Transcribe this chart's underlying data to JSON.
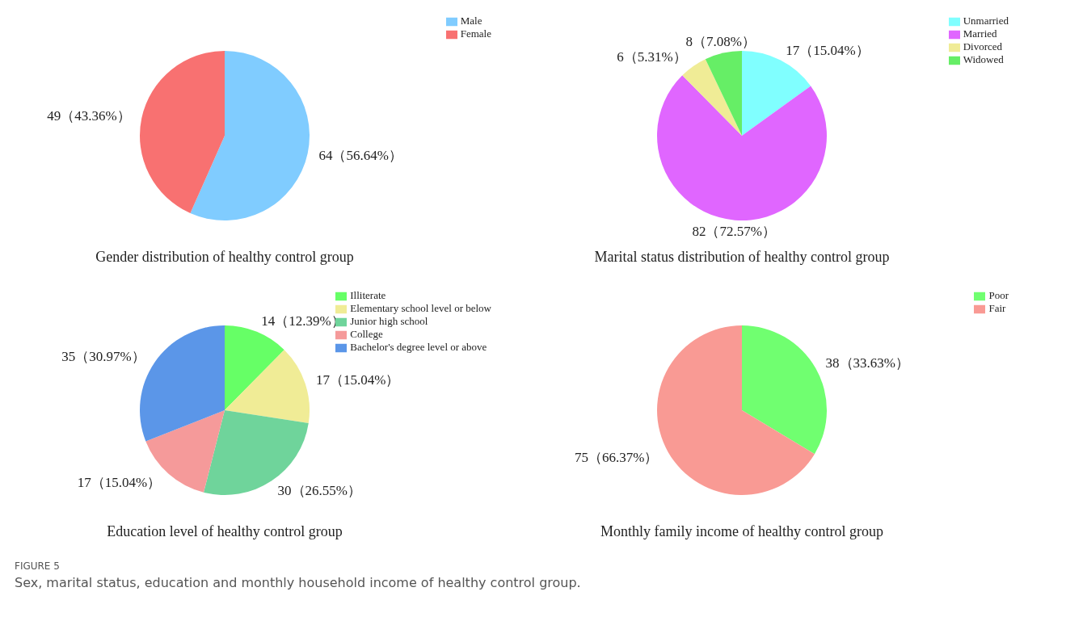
{
  "chart_data": [
    {
      "type": "pie",
      "title": "Gender distribution of healthy control group",
      "categories": [
        "Male",
        "Female"
      ],
      "values": [
        64,
        49
      ],
      "colors": [
        "#80ccff",
        "#f87171"
      ],
      "value_labels": [
        "64（56.64%）",
        "49（43.36%）"
      ],
      "legend": "top right"
    },
    {
      "type": "pie",
      "title": "Marital  status distribution of healthy control group",
      "categories": [
        "Unmarried",
        "Married",
        "Divorced",
        "Widowed"
      ],
      "values": [
        17,
        82,
        6,
        8
      ],
      "colors": [
        "#80ffff",
        "#e066ff",
        "#f0ec96",
        "#66ee66"
      ],
      "value_labels": [
        "17（15.04%）",
        "82（72.57%）",
        "6（5.31%）",
        "8（7.08%）"
      ],
      "legend": "top right"
    },
    {
      "type": "pie",
      "title": "Education level of healthy control group",
      "categories": [
        "Illiterate",
        "Elementary  school level or below",
        "Junior high school",
        "College",
        "Bachelor's degree  level or above"
      ],
      "values": [
        14,
        17,
        30,
        17,
        35
      ],
      "colors": [
        "#66ff66",
        "#f0ec96",
        "#6fd49b",
        "#f59a9a",
        "#5b96e8"
      ],
      "value_labels": [
        "14（12.39%）",
        "17（15.04%）",
        "30（26.55%）",
        "17（15.04%）",
        "35（30.97%）"
      ],
      "legend": "top right"
    },
    {
      "type": "pie",
      "title": "Monthly family income of healthy control group",
      "categories": [
        "Poor",
        "Fair"
      ],
      "values": [
        38,
        75
      ],
      "colors": [
        "#70ff70",
        "#f99a94"
      ],
      "value_labels": [
        "38（33.63%）",
        "75（66.37%）"
      ],
      "legend": "top right",
      "annotations": [
        "FIGURE 5",
        "Sex, marital status, education and monthly household income of healthy control group."
      ]
    }
  ]
}
